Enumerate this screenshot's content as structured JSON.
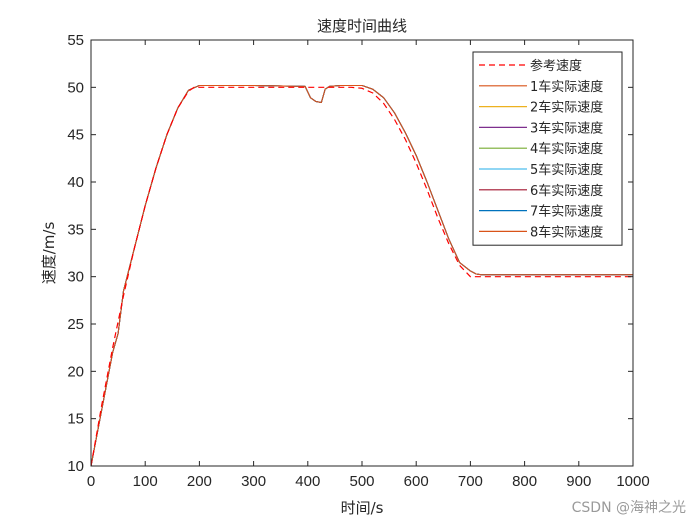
{
  "chart_data": {
    "type": "line",
    "title": "速度时间曲线",
    "xlabel": "时间/s",
    "ylabel": "速度/m/s",
    "xlim": [
      0,
      1000
    ],
    "ylim": [
      10,
      55
    ],
    "xticks": [
      0,
      100,
      200,
      300,
      400,
      500,
      600,
      700,
      800,
      900,
      1000
    ],
    "yticks": [
      10,
      15,
      20,
      25,
      30,
      35,
      40,
      45,
      50,
      55
    ],
    "grid": false,
    "legend_position": "upper right (inside)",
    "series": [
      {
        "name": "参考速度",
        "color": "#ff0000",
        "style": "dashed",
        "x": [
          0,
          20,
          40,
          60,
          80,
          100,
          120,
          140,
          160,
          180,
          190,
          200,
          300,
          400,
          480,
          500,
          520,
          540,
          560,
          580,
          600,
          620,
          640,
          660,
          680,
          700,
          720,
          800,
          900,
          1000
        ],
        "y": [
          10,
          16.5,
          22.5,
          28,
          33,
          37.5,
          41.5,
          45,
          47.8,
          49.6,
          50,
          50,
          50,
          50,
          50,
          49.9,
          49.4,
          48.3,
          46.6,
          44.5,
          42,
          39.2,
          36.2,
          33.5,
          31.2,
          30,
          30,
          30,
          30,
          30
        ]
      },
      {
        "name": "1车实际速度",
        "color": "#d95319",
        "style": "solid",
        "x": [
          0,
          20,
          40,
          50,
          60,
          80,
          100,
          120,
          140,
          160,
          180,
          200,
          300,
          395,
          405,
          415,
          425,
          432,
          440,
          460,
          500,
          520,
          540,
          560,
          580,
          600,
          620,
          640,
          660,
          680,
          700,
          710,
          720,
          800,
          900,
          1000
        ],
        "y": [
          10,
          16,
          22,
          24,
          28.5,
          33,
          37.5,
          41.5,
          45,
          47.8,
          49.7,
          50.2,
          50.2,
          50.1,
          48.9,
          48.5,
          48.4,
          49.8,
          50.1,
          50.2,
          50.2,
          49.8,
          48.9,
          47.3,
          45.2,
          42.8,
          40,
          37,
          34,
          31.5,
          30.6,
          30.3,
          30.2,
          30.2,
          30.2,
          30.2
        ]
      },
      {
        "name": "2车实际速度",
        "color": "#edb120",
        "style": "solid",
        "x": [
          0,
          20,
          40,
          50,
          60,
          80,
          100,
          120,
          140,
          160,
          180,
          200,
          300,
          395,
          405,
          415,
          425,
          432,
          440,
          460,
          500,
          520,
          540,
          560,
          580,
          600,
          620,
          640,
          660,
          680,
          700,
          710,
          720,
          800,
          900,
          1000
        ],
        "y": [
          10,
          16,
          22,
          24,
          28.5,
          33,
          37.5,
          41.5,
          45,
          47.8,
          49.7,
          50.2,
          50.2,
          50.1,
          48.9,
          48.5,
          48.4,
          49.8,
          50.1,
          50.2,
          50.2,
          49.8,
          48.9,
          47.3,
          45.2,
          42.8,
          40,
          37,
          34,
          31.5,
          30.6,
          30.3,
          30.2,
          30.2,
          30.2,
          30.2
        ]
      },
      {
        "name": "3车实际速度",
        "color": "#7e2f8e",
        "style": "solid",
        "x": [
          0,
          20,
          40,
          50,
          60,
          80,
          100,
          120,
          140,
          160,
          180,
          200,
          300,
          395,
          405,
          415,
          425,
          432,
          440,
          460,
          500,
          520,
          540,
          560,
          580,
          600,
          620,
          640,
          660,
          680,
          700,
          710,
          720,
          800,
          900,
          1000
        ],
        "y": [
          10,
          16,
          22,
          24,
          28.5,
          33,
          37.5,
          41.5,
          45,
          47.8,
          49.7,
          50.2,
          50.2,
          50.1,
          48.9,
          48.5,
          48.4,
          49.8,
          50.1,
          50.2,
          50.2,
          49.8,
          48.9,
          47.3,
          45.2,
          42.8,
          40,
          37,
          34,
          31.5,
          30.6,
          30.3,
          30.2,
          30.2,
          30.2,
          30.2
        ]
      },
      {
        "name": "4车实际速度",
        "color": "#77ac30",
        "style": "solid",
        "x": [
          0,
          20,
          40,
          50,
          60,
          80,
          100,
          120,
          140,
          160,
          180,
          200,
          300,
          395,
          405,
          415,
          425,
          432,
          440,
          460,
          500,
          520,
          540,
          560,
          580,
          600,
          620,
          640,
          660,
          680,
          700,
          710,
          720,
          800,
          900,
          1000
        ],
        "y": [
          10,
          16,
          22,
          24,
          28.5,
          33,
          37.5,
          41.5,
          45,
          47.8,
          49.7,
          50.2,
          50.2,
          50.1,
          48.9,
          48.5,
          48.4,
          49.8,
          50.1,
          50.2,
          50.2,
          49.8,
          48.9,
          47.3,
          45.2,
          42.8,
          40,
          37,
          34,
          31.5,
          30.6,
          30.3,
          30.2,
          30.2,
          30.2,
          30.2
        ]
      },
      {
        "name": "5车实际速度",
        "color": "#4dbeee",
        "style": "solid",
        "x": [
          0,
          20,
          40,
          50,
          60,
          80,
          100,
          120,
          140,
          160,
          180,
          200,
          300,
          395,
          405,
          415,
          425,
          432,
          440,
          460,
          500,
          520,
          540,
          560,
          580,
          600,
          620,
          640,
          660,
          680,
          700,
          710,
          720,
          800,
          900,
          1000
        ],
        "y": [
          10,
          16,
          22,
          24,
          28.5,
          33,
          37.5,
          41.5,
          45,
          47.8,
          49.7,
          50.2,
          50.2,
          50.1,
          48.9,
          48.5,
          48.4,
          49.8,
          50.1,
          50.2,
          50.2,
          49.8,
          48.9,
          47.3,
          45.2,
          42.8,
          40,
          37,
          34,
          31.5,
          30.6,
          30.3,
          30.2,
          30.2,
          30.2,
          30.2
        ]
      },
      {
        "name": "6车实际速度",
        "color": "#a2142f",
        "style": "solid",
        "x": [
          0,
          20,
          40,
          50,
          60,
          80,
          100,
          120,
          140,
          160,
          180,
          200,
          300,
          395,
          405,
          415,
          425,
          432,
          440,
          460,
          500,
          520,
          540,
          560,
          580,
          600,
          620,
          640,
          660,
          680,
          700,
          710,
          720,
          800,
          900,
          1000
        ],
        "y": [
          10,
          16,
          22,
          24,
          28.5,
          33,
          37.5,
          41.5,
          45,
          47.8,
          49.7,
          50.2,
          50.2,
          50.1,
          48.9,
          48.5,
          48.4,
          49.8,
          50.1,
          50.2,
          50.2,
          49.8,
          48.9,
          47.3,
          45.2,
          42.8,
          40,
          37,
          34,
          31.5,
          30.6,
          30.3,
          30.2,
          30.2,
          30.2,
          30.2
        ]
      },
      {
        "name": "7车实际速度",
        "color": "#0072bd",
        "style": "solid",
        "x": [
          0,
          20,
          40,
          50,
          60,
          80,
          100,
          120,
          140,
          160,
          180,
          200,
          300,
          395,
          405,
          415,
          425,
          432,
          440,
          460,
          500,
          520,
          540,
          560,
          580,
          600,
          620,
          640,
          660,
          680,
          700,
          710,
          720,
          800,
          900,
          1000
        ],
        "y": [
          10,
          16,
          22,
          24,
          28.5,
          33,
          37.5,
          41.5,
          45,
          47.8,
          49.7,
          50.2,
          50.2,
          50.1,
          48.9,
          48.5,
          48.4,
          49.8,
          50.1,
          50.2,
          50.2,
          49.8,
          48.9,
          47.3,
          45.2,
          42.8,
          40,
          37,
          34,
          31.5,
          30.6,
          30.3,
          30.2,
          30.2,
          30.2,
          30.2
        ]
      },
      {
        "name": "8车实际速度",
        "color": "#d95319",
        "style": "solid",
        "x": [
          0,
          20,
          40,
          50,
          60,
          80,
          100,
          120,
          140,
          160,
          180,
          200,
          300,
          395,
          405,
          415,
          425,
          432,
          440,
          460,
          500,
          520,
          540,
          560,
          580,
          600,
          620,
          640,
          660,
          680,
          700,
          710,
          720,
          800,
          900,
          1000
        ],
        "y": [
          10,
          16,
          22,
          24,
          28.5,
          33,
          37.5,
          41.5,
          45,
          47.8,
          49.7,
          50.2,
          50.2,
          50.1,
          48.9,
          48.5,
          48.4,
          49.8,
          50.1,
          50.2,
          50.2,
          49.8,
          48.9,
          47.3,
          45.2,
          42.8,
          40,
          37,
          34,
          31.5,
          30.6,
          30.3,
          30.2,
          30.2,
          30.2,
          30.2
        ]
      }
    ]
  },
  "title": "速度时间曲线",
  "xlabel": "时间/s",
  "ylabel": "速度/m/s",
  "legend": {
    "entries": [
      "参考速度",
      "1车实际速度",
      "2车实际速度",
      "3车实际速度",
      "4车实际速度",
      "5车实际速度",
      "6车实际速度",
      "7车实际速度",
      "8车实际速度"
    ]
  },
  "watermark": "CSDN @海神之光"
}
